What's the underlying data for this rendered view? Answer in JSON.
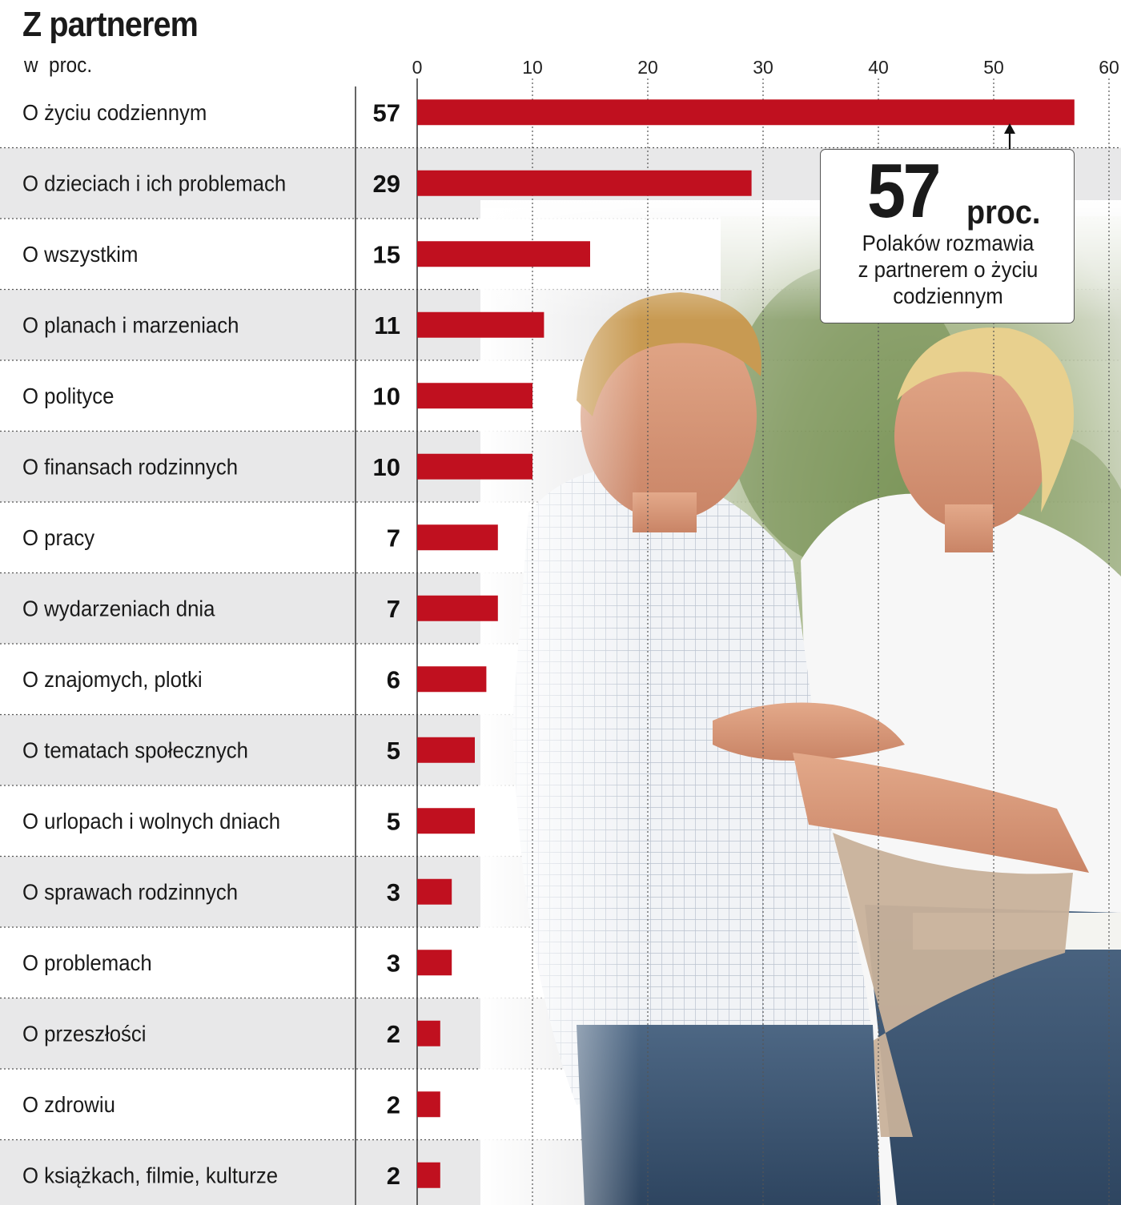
{
  "title": "Z partnerem",
  "subtitle": "w  proc.",
  "chart_data": {
    "type": "bar",
    "orientation": "horizontal",
    "categories": [
      "O życiu codziennym",
      "O dzieciach i ich problemach",
      "O wszystkim",
      "O planach i marzeniach",
      "O polityce",
      "O finansach rodzinnych",
      "O pracy",
      "O wydarzeniach dnia",
      "O znajomych, plotki",
      "O tematach społecznych",
      "O urlopach i wolnych dniach",
      "O sprawach rodzinnych",
      "O problemach",
      "O przeszłości",
      "O zdrowiu",
      "O książkach, filmie, kulturze"
    ],
    "values": [
      57,
      29,
      15,
      11,
      10,
      10,
      7,
      7,
      6,
      5,
      5,
      3,
      3,
      2,
      2,
      2
    ],
    "value_labels": [
      "57",
      "29",
      "15",
      "11",
      "10",
      "10",
      "7",
      "7",
      "6",
      "5",
      "5",
      "3",
      "3",
      "2",
      "2",
      "2"
    ],
    "xlim": [
      0,
      60
    ],
    "ticks": [
      0,
      10,
      20,
      30,
      40,
      50,
      60
    ],
    "tick_labels": [
      "0",
      "10",
      "20",
      "30",
      "40",
      "50",
      "60"
    ],
    "grid": true,
    "bar_color": "#c0101f",
    "stripe_color": "#e8e8e9"
  },
  "callout": {
    "value": "57",
    "unit": "proc.",
    "text_lines": [
      "Polaków rozmawia",
      "z partnerem o życiu",
      "codziennym"
    ]
  }
}
